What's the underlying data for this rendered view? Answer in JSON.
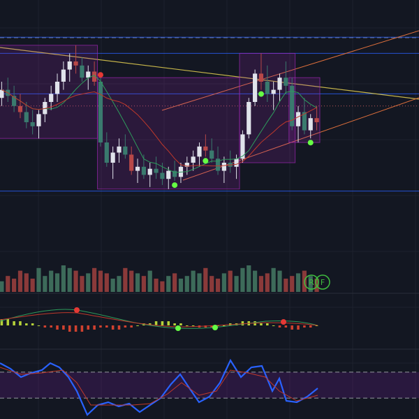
{
  "chart_data": {
    "type": "candlestick",
    "theme": {
      "background": "#131722",
      "grid": "#1e222d",
      "up": "#e0e3eb",
      "down": "#3a7a6e",
      "down_alt": "#b84848",
      "box": "#9c27b0",
      "hline": "#2962ff"
    },
    "price_panel": {
      "ylim": [
        0,
        100
      ],
      "candles": [
        {
          "o": 62,
          "h": 70,
          "l": 58,
          "c": 66
        },
        {
          "o": 66,
          "h": 72,
          "l": 60,
          "c": 63
        },
        {
          "o": 63,
          "h": 68,
          "l": 55,
          "c": 58
        },
        {
          "o": 58,
          "h": 64,
          "l": 52,
          "c": 55
        },
        {
          "o": 55,
          "h": 60,
          "l": 47,
          "c": 50
        },
        {
          "o": 50,
          "h": 56,
          "l": 44,
          "c": 48
        },
        {
          "o": 48,
          "h": 56,
          "l": 42,
          "c": 54
        },
        {
          "o": 54,
          "h": 62,
          "l": 50,
          "c": 60
        },
        {
          "o": 60,
          "h": 68,
          "l": 56,
          "c": 64
        },
        {
          "o": 64,
          "h": 74,
          "l": 60,
          "c": 70
        },
        {
          "o": 70,
          "h": 80,
          "l": 66,
          "c": 76
        },
        {
          "o": 76,
          "h": 84,
          "l": 70,
          "c": 80
        },
        {
          "o": 80,
          "h": 88,
          "l": 74,
          "c": 78
        },
        {
          "o": 78,
          "h": 82,
          "l": 70,
          "c": 72
        },
        {
          "o": 72,
          "h": 78,
          "l": 66,
          "c": 75
        },
        {
          "o": 75,
          "h": 80,
          "l": 68,
          "c": 70
        },
        {
          "o": 70,
          "h": 72,
          "l": 38,
          "c": 40
        },
        {
          "o": 40,
          "h": 45,
          "l": 28,
          "c": 30
        },
        {
          "o": 30,
          "h": 38,
          "l": 22,
          "c": 35
        },
        {
          "o": 35,
          "h": 42,
          "l": 30,
          "c": 38
        },
        {
          "o": 38,
          "h": 44,
          "l": 32,
          "c": 34
        },
        {
          "o": 34,
          "h": 38,
          "l": 24,
          "c": 26
        },
        {
          "o": 26,
          "h": 32,
          "l": 20,
          "c": 28
        },
        {
          "o": 28,
          "h": 34,
          "l": 22,
          "c": 24
        },
        {
          "o": 24,
          "h": 30,
          "l": 18,
          "c": 27
        },
        {
          "o": 27,
          "h": 33,
          "l": 22,
          "c": 25
        },
        {
          "o": 25,
          "h": 30,
          "l": 19,
          "c": 22
        },
        {
          "o": 22,
          "h": 28,
          "l": 17,
          "c": 26
        },
        {
          "o": 26,
          "h": 31,
          "l": 21,
          "c": 23
        },
        {
          "o": 23,
          "h": 30,
          "l": 20,
          "c": 28
        },
        {
          "o": 28,
          "h": 33,
          "l": 24,
          "c": 30
        },
        {
          "o": 30,
          "h": 36,
          "l": 26,
          "c": 33
        },
        {
          "o": 33,
          "h": 40,
          "l": 28,
          "c": 38
        },
        {
          "o": 38,
          "h": 44,
          "l": 33,
          "c": 36
        },
        {
          "o": 36,
          "h": 42,
          "l": 30,
          "c": 32
        },
        {
          "o": 32,
          "h": 38,
          "l": 24,
          "c": 26
        },
        {
          "o": 26,
          "h": 33,
          "l": 20,
          "c": 30
        },
        {
          "o": 30,
          "h": 36,
          "l": 25,
          "c": 28
        },
        {
          "o": 28,
          "h": 34,
          "l": 22,
          "c": 32
        },
        {
          "o": 32,
          "h": 46,
          "l": 30,
          "c": 44
        },
        {
          "o": 44,
          "h": 62,
          "l": 42,
          "c": 60
        },
        {
          "o": 60,
          "h": 76,
          "l": 58,
          "c": 74
        },
        {
          "o": 74,
          "h": 84,
          "l": 66,
          "c": 70
        },
        {
          "o": 70,
          "h": 78,
          "l": 60,
          "c": 64
        },
        {
          "o": 64,
          "h": 70,
          "l": 56,
          "c": 66
        },
        {
          "o": 66,
          "h": 74,
          "l": 60,
          "c": 72
        },
        {
          "o": 72,
          "h": 80,
          "l": 64,
          "c": 68
        },
        {
          "o": 68,
          "h": 72,
          "l": 46,
          "c": 48
        },
        {
          "o": 48,
          "h": 58,
          "l": 40,
          "c": 55
        },
        {
          "o": 55,
          "h": 62,
          "l": 44,
          "c": 46
        },
        {
          "o": 46,
          "h": 54,
          "l": 42,
          "c": 52
        },
        {
          "o": 52,
          "h": 58,
          "l": 46,
          "c": 50
        }
      ],
      "hlines": [
        92,
        84,
        64,
        16
      ],
      "dotted_line": 58
    },
    "volume_panel": {
      "values": [
        4,
        6,
        5,
        8,
        7,
        5,
        9,
        6,
        8,
        7,
        10,
        9,
        8,
        6,
        7,
        9,
        8,
        7,
        5,
        6,
        9,
        8,
        7,
        6,
        8,
        5,
        4,
        6,
        7,
        5,
        6,
        8,
        7,
        9,
        6,
        5,
        7,
        8,
        6,
        9,
        10,
        8,
        6,
        7,
        9,
        8,
        5,
        6,
        7,
        8,
        6,
        5
      ],
      "legend_badges": [
        "R",
        "F"
      ]
    },
    "macd_panel": {
      "hist": [
        3,
        3,
        2,
        2,
        1,
        1,
        0,
        -1,
        -1,
        -2,
        -2,
        -3,
        -3,
        -3,
        -2,
        -2,
        -1,
        -1,
        -2,
        -2,
        -1,
        -1,
        0,
        1,
        1,
        2,
        2,
        2,
        1,
        1,
        0,
        0,
        -1,
        -1,
        -1,
        0,
        0,
        1,
        1,
        2,
        2,
        2,
        1,
        1,
        0,
        -1,
        -1,
        -2,
        -2,
        -1,
        -1,
        0
      ],
      "dots": [
        "red",
        "green",
        "green",
        "red"
      ]
    },
    "rsi_panel": {
      "ylim": [
        0,
        100
      ],
      "upper_band": 70,
      "lower_band": 30
    }
  }
}
